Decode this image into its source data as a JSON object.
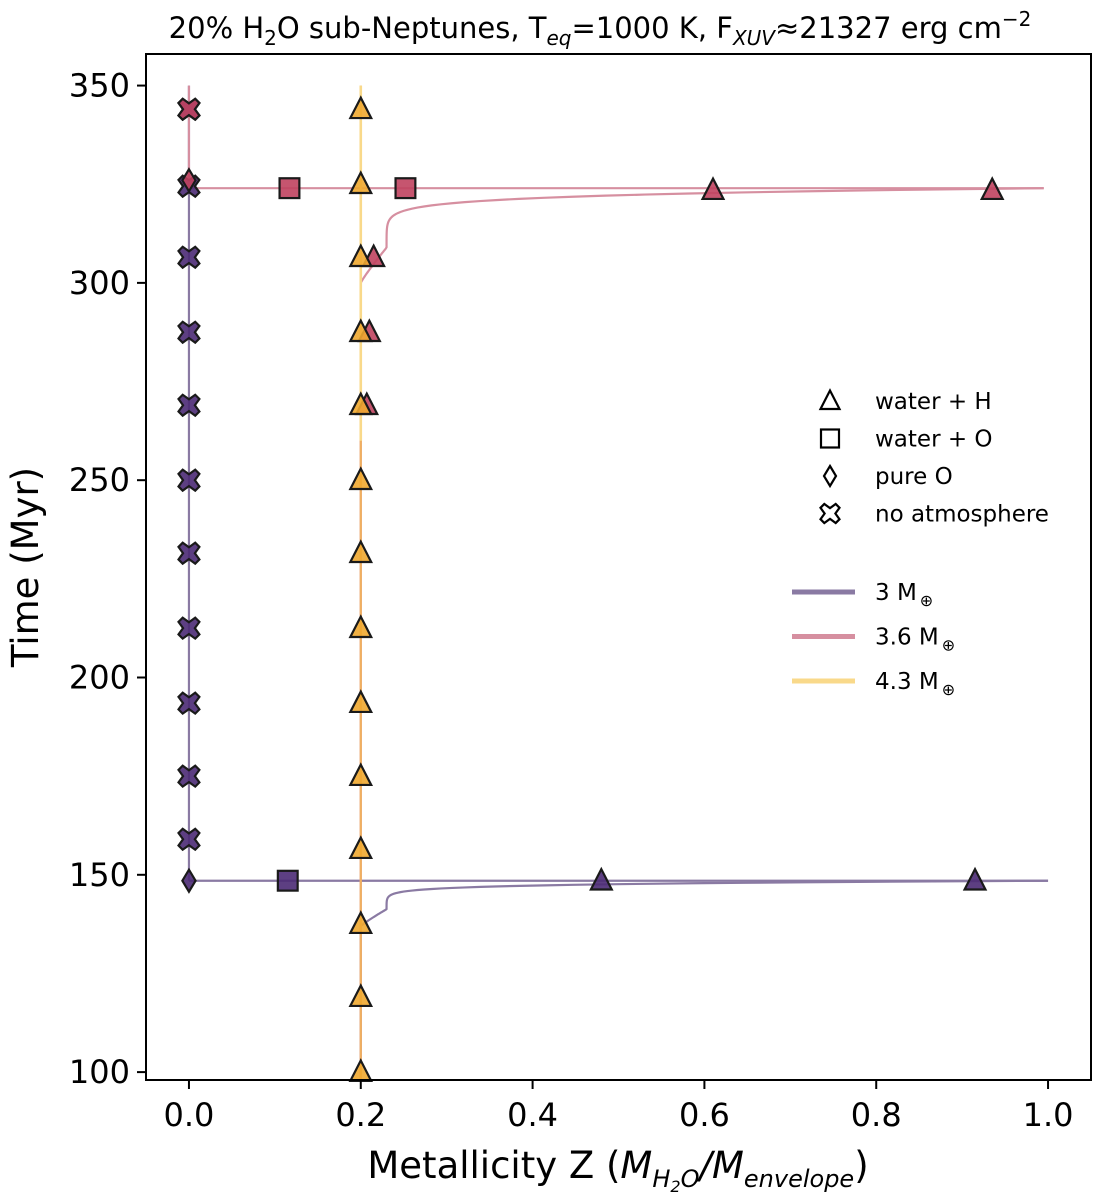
{
  "chart_data": {
    "type": "scatter",
    "title": {
      "prefix": "20% H",
      "sub1": "2",
      "mid1": "O sub-Neptunes, T",
      "sub2": "eq",
      "mid2": "=1000 K, F",
      "sub3": "XUV",
      "mid3": "≈21327 erg cm",
      "sup": "−2"
    },
    "xlabel": {
      "prefix": "Metallicity Z (",
      "m1": "M",
      "sub1": "H",
      "sub1b": "2",
      "sub1c": "O",
      "slash": "/",
      "m2": "M",
      "sub2": "envelope",
      "suffix": ")"
    },
    "ylabel": "Time (Myr)",
    "xlim": [
      -0.05,
      1.05
    ],
    "ylim": [
      98,
      358
    ],
    "xticks": [
      0.0,
      0.2,
      0.4,
      0.6,
      0.8,
      1.0
    ],
    "xtick_labels": [
      "0.0",
      "0.2",
      "0.4",
      "0.6",
      "0.8",
      "1.0"
    ],
    "yticks": [
      100,
      150,
      200,
      250,
      300,
      350
    ],
    "ytick_labels": [
      "100",
      "150",
      "200",
      "250",
      "300",
      "350"
    ],
    "colors": {
      "m3": "#8a7aa3",
      "m36": "#d68fa0",
      "m43": "#f9d98a",
      "m43_path": "#f0b060",
      "m3_marker": "#4b2a74",
      "m36_marker": "#c0435f",
      "m43_marker": "#f0a830",
      "marker_edge": "#1a1a1a"
    },
    "series": [
      {
        "name": "3 M⊕",
        "color_key": "m3",
        "marker_color_key": "m3_marker",
        "transition_time": 148.5,
        "path": {
          "x0": 0.2,
          "y_start": 98,
          "y_turn": 137,
          "x_end": 1.0
        },
        "vertical_after": {
          "x": 0.0,
          "y_from": 148.5,
          "y_to": 350
        },
        "points": [
          {
            "x": 0.915,
            "y": 148.5,
            "marker": "triangle"
          },
          {
            "x": 0.48,
            "y": 148.5,
            "marker": "triangle"
          },
          {
            "x": 0.115,
            "y": 148.5,
            "marker": "square"
          },
          {
            "x": 0.0,
            "y": 148.5,
            "marker": "diamond"
          },
          {
            "x": 0.0,
            "y": 159,
            "marker": "cross"
          },
          {
            "x": 0.0,
            "y": 175,
            "marker": "cross"
          },
          {
            "x": 0.0,
            "y": 193.5,
            "marker": "cross"
          },
          {
            "x": 0.0,
            "y": 212.5,
            "marker": "cross"
          },
          {
            "x": 0.0,
            "y": 231.5,
            "marker": "cross"
          },
          {
            "x": 0.0,
            "y": 250,
            "marker": "cross"
          },
          {
            "x": 0.0,
            "y": 269,
            "marker": "cross"
          },
          {
            "x": 0.0,
            "y": 287.5,
            "marker": "cross"
          },
          {
            "x": 0.0,
            "y": 306.5,
            "marker": "cross"
          },
          {
            "x": 0.0,
            "y": 324.5,
            "marker": "cross"
          },
          {
            "x": 0.0,
            "y": 344,
            "marker": "cross"
          }
        ]
      },
      {
        "name": "3.6 M⊕",
        "color_key": "m36",
        "marker_color_key": "m36_marker",
        "transition_time": 324,
        "path": {
          "x0": 0.2,
          "y_start": 98,
          "y_turn": 300,
          "x_end": 0.995
        },
        "vertical_after": {
          "x": 0.0,
          "y_from": 324,
          "y_to": 350
        },
        "points": [
          {
            "x": 0.207,
            "y": 269,
            "marker": "triangle"
          },
          {
            "x": 0.21,
            "y": 287.5,
            "marker": "triangle"
          },
          {
            "x": 0.215,
            "y": 306.5,
            "marker": "triangle"
          },
          {
            "x": 0.935,
            "y": 323.5,
            "marker": "triangle"
          },
          {
            "x": 0.61,
            "y": 323.5,
            "marker": "triangle"
          },
          {
            "x": 0.252,
            "y": 324,
            "marker": "square"
          },
          {
            "x": 0.117,
            "y": 324,
            "marker": "square"
          },
          {
            "x": 0.0,
            "y": 326,
            "marker": "diamond"
          },
          {
            "x": 0.0,
            "y": 344,
            "marker": "cross"
          }
        ]
      },
      {
        "name": "4.3 M⊕",
        "color_key": "m43",
        "marker_color_key": "m43_marker",
        "transition_time": null,
        "path": {
          "x0": 0.2,
          "y_start": 98,
          "y_end": 350
        },
        "points": [
          {
            "x": 0.2,
            "y": 100,
            "marker": "triangle"
          },
          {
            "x": 0.2,
            "y": 119,
            "marker": "triangle"
          },
          {
            "x": 0.2,
            "y": 137.5,
            "marker": "triangle"
          },
          {
            "x": 0.2,
            "y": 156.5,
            "marker": "triangle"
          },
          {
            "x": 0.2,
            "y": 175,
            "marker": "triangle"
          },
          {
            "x": 0.2,
            "y": 193.5,
            "marker": "triangle"
          },
          {
            "x": 0.2,
            "y": 212.5,
            "marker": "triangle"
          },
          {
            "x": 0.2,
            "y": 231.5,
            "marker": "triangle"
          },
          {
            "x": 0.2,
            "y": 250,
            "marker": "triangle"
          },
          {
            "x": 0.2,
            "y": 269,
            "marker": "triangle"
          },
          {
            "x": 0.2,
            "y": 287.5,
            "marker": "triangle"
          },
          {
            "x": 0.2,
            "y": 306.5,
            "marker": "triangle"
          },
          {
            "x": 0.2,
            "y": 325,
            "marker": "triangle"
          },
          {
            "x": 0.2,
            "y": 344,
            "marker": "triangle"
          }
        ]
      }
    ],
    "marker_legend": [
      {
        "marker": "triangle",
        "label": "water + H"
      },
      {
        "marker": "square",
        "label": "water + O"
      },
      {
        "marker": "diamond",
        "label": "pure O"
      },
      {
        "marker": "cross",
        "label": "no atmosphere"
      }
    ],
    "line_legend": [
      {
        "color_key": "m3",
        "label": "3 M",
        "sub": "⊕"
      },
      {
        "color_key": "m36",
        "label": "3.6 M",
        "sub": "⊕"
      },
      {
        "color_key": "m43",
        "label": "4.3 M",
        "sub": "⊕"
      }
    ],
    "legend_position": "center-right"
  }
}
